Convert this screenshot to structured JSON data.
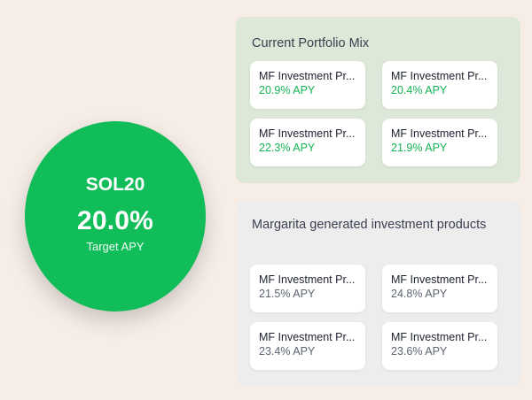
{
  "target": {
    "name": "SOL20",
    "value": "20.0%",
    "label": "Target APY"
  },
  "current_mix": {
    "title": "Current Portfolio Mix",
    "products": [
      {
        "name": "MF Investment Pr...",
        "apy": "20.9% APY"
      },
      {
        "name": "MF Investment Pr...",
        "apy": "20.4% APY"
      },
      {
        "name": "MF Investment Pr...",
        "apy": "22.3% APY"
      },
      {
        "name": "MF Investment Pr...",
        "apy": "21.9% APY"
      }
    ],
    "apy_color": "#14b454"
  },
  "generated": {
    "title": "Margarita generated investment products",
    "products": [
      {
        "name": "MF Investment Pr...",
        "apy": "21.5% APY"
      },
      {
        "name": "MF Investment Pr...",
        "apy": "24.8% APY"
      },
      {
        "name": "MF Investment Pr...",
        "apy": "23.4% APY"
      },
      {
        "name": "MF Investment Pr...",
        "apy": "23.6% APY"
      }
    ],
    "apy_color": "#5d6372"
  },
  "colors": {
    "background": "#f5ede6",
    "target_circle": "#11bd58",
    "current_panel": "#dde8d8",
    "generated_panel": "#eeedee"
  }
}
